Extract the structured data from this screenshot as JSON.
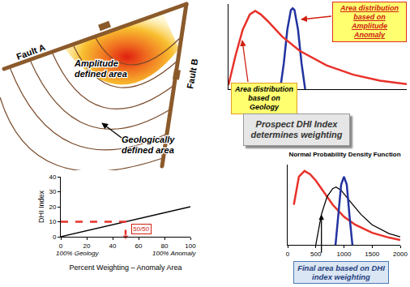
{
  "diagram": {
    "fault_a": "Fault A",
    "fault_b": "Fault B",
    "amplitude_area": "Amplitude defined area",
    "geology_area": "Geologically defined area"
  },
  "callout": "Prospect DHI Index determines weighting",
  "chart_data": [
    {
      "type": "line",
      "tick_labels": false,
      "grid": false,
      "xlim": [
        0,
        100
      ],
      "ylim": [
        0,
        1
      ],
      "series": [
        {
          "name": "Area distribution based on Amplitude Anomaly",
          "color": "#2233a0",
          "x": [
            29,
            31,
            33,
            35,
            36,
            37,
            39,
            41,
            43
          ],
          "values": [
            0,
            0.3,
            0.7,
            0.93,
            0.95,
            0.93,
            0.7,
            0.3,
            0
          ]
        },
        {
          "name": "Area distribution based on Geology",
          "color": "#e8312a",
          "x": [
            0,
            4,
            8,
            12,
            15,
            18,
            22,
            30,
            40,
            55,
            70,
            85,
            100
          ],
          "values": [
            0.05,
            0.4,
            0.7,
            0.88,
            0.92,
            0.88,
            0.8,
            0.62,
            0.45,
            0.28,
            0.17,
            0.1,
            0.06
          ]
        }
      ]
    },
    {
      "type": "line",
      "grid": false,
      "xlabel": "Percent Weighting – Anomaly Area",
      "ylabel": "DHI Index",
      "xlim": [
        0,
        100
      ],
      "ylim": [
        0,
        40
      ],
      "xticks": [
        0,
        20,
        40,
        60,
        80,
        100
      ],
      "yticks": [
        0,
        10,
        20,
        30,
        40
      ],
      "series": [
        {
          "color": "#000000",
          "x": [
            0,
            100
          ],
          "values": [
            0,
            20
          ]
        },
        {
          "color": "#e8312a",
          "line_style": "dash",
          "marker": "triangle-down",
          "x": [
            0,
            50,
            50
          ],
          "values": [
            10,
            10,
            0
          ]
        }
      ],
      "annotations": [
        {
          "text": "50/50",
          "x": 62,
          "y": 5
        },
        {
          "text": "100% Geology",
          "x": 0
        },
        {
          "text": "100% Anomaly",
          "x": 100
        }
      ]
    },
    {
      "type": "line",
      "title": "Normal Probability Density Function",
      "grid": false,
      "tick_labels": "x",
      "xlim": [
        0,
        2000
      ],
      "ylim": [
        0,
        1
      ],
      "xticks": [
        0,
        500,
        1000,
        1500,
        2000
      ],
      "series": [
        {
          "color": "#e8312a",
          "x": [
            110,
            200,
            300,
            400,
            500,
            600,
            800,
            1000,
            1200,
            1500,
            1800,
            2000
          ],
          "values": [
            0.5,
            0.85,
            0.92,
            0.88,
            0.8,
            0.7,
            0.5,
            0.35,
            0.25,
            0.15,
            0.09,
            0.06
          ]
        },
        {
          "color": "#000000",
          "x": [
            500,
            550,
            600,
            700,
            800,
            860,
            950,
            1100,
            1300,
            1500,
            1800,
            2000
          ],
          "values": [
            0,
            0.2,
            0.38,
            0.6,
            0.7,
            0.72,
            0.68,
            0.55,
            0.38,
            0.25,
            0.14,
            0.1
          ]
        },
        {
          "color": "#2233a0",
          "x": [
            850,
            900,
            950,
            1000,
            1050,
            1100,
            1150
          ],
          "values": [
            0,
            0.35,
            0.75,
            0.85,
            0.75,
            0.35,
            0
          ]
        }
      ],
      "annotations": [
        {
          "text": "Final area based on DHI index weighting",
          "x": 600,
          "y": 0.38
        }
      ]
    }
  ]
}
